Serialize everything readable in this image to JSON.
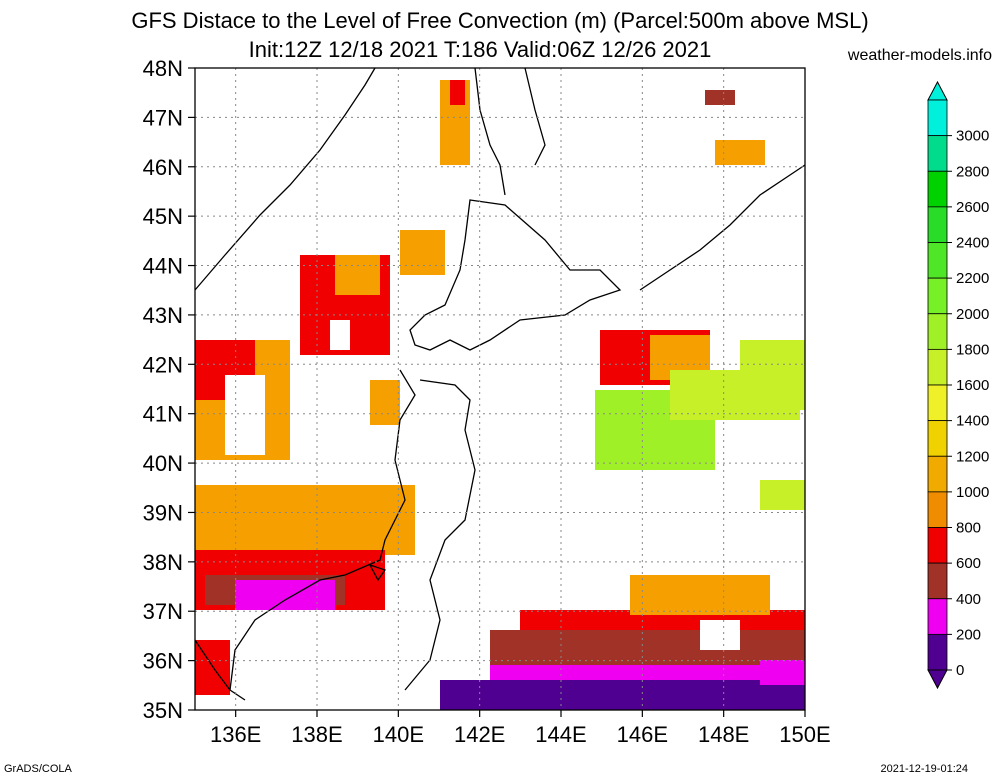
{
  "header": {
    "title_line1": "GFS Distace to the Level of Free Convection (m) (Parcel:500m above MSL)",
    "title_line2": "Init:12Z 12/18 2021 T:186 Valid:06Z 12/26 2021",
    "site": "weather-models.info"
  },
  "footer": {
    "left": "GrADS/COLA",
    "right": "2021-12-19-01:24"
  },
  "map": {
    "lat_labels": [
      "48N",
      "47N",
      "46N",
      "45N",
      "44N",
      "43N",
      "42N",
      "41N",
      "40N",
      "39N",
      "38N",
      "37N",
      "36N",
      "35N"
    ],
    "lon_labels": [
      "136E",
      "138E",
      "140E",
      "142E",
      "144E",
      "146E",
      "148E",
      "150E"
    ],
    "lat_range": [
      35,
      48
    ],
    "lon_range": [
      135,
      150
    ],
    "grid": "dotted"
  },
  "colorbar": {
    "labels": [
      "3000",
      "2800",
      "2600",
      "2400",
      "2200",
      "2000",
      "1800",
      "1600",
      "1400",
      "1200",
      "1000",
      "800",
      "600",
      "400",
      "200",
      "0"
    ],
    "colors": [
      "#00f0dc",
      "#00dc8c",
      "#00d200",
      "#28dc28",
      "#50e628",
      "#78f028",
      "#a0f028",
      "#c8f028",
      "#f0f028",
      "#f0d200",
      "#f0aa00",
      "#f08c00",
      "#f00000",
      "#a03228",
      "#f000f0",
      "#500090"
    ]
  },
  "legend_colors": {
    "purple": "#500090",
    "magenta": "#f000f0",
    "brown": "#a03228",
    "red": "#f00000",
    "orange": "#f5a000",
    "lightorange": "#f0c800",
    "yellow": "#f0f028",
    "lime": "#a0f028"
  }
}
